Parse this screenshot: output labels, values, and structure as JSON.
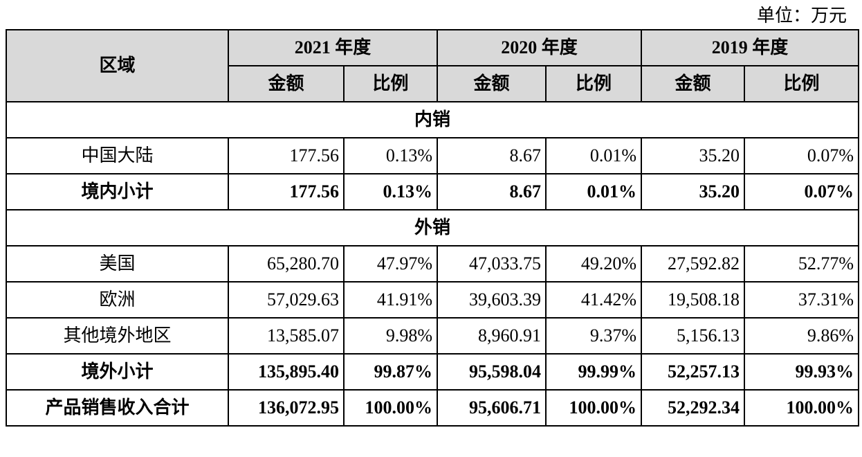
{
  "unit_label": "单位：万元",
  "header": {
    "region": "区域",
    "years": [
      "2021 年度",
      "2020 年度",
      "2019 年度"
    ],
    "amount": "金额",
    "ratio": "比例"
  },
  "sections": {
    "domestic": "内销",
    "overseas": "外销"
  },
  "rows": {
    "mainland": {
      "region": "中国大陆",
      "v": [
        "177.56",
        "0.13%",
        "8.67",
        "0.01%",
        "35.20",
        "0.07%"
      ]
    },
    "domestic_subtotal": {
      "region": "境内小计",
      "v": [
        "177.56",
        "0.13%",
        "8.67",
        "0.01%",
        "35.20",
        "0.07%"
      ]
    },
    "usa": {
      "region": "美国",
      "v": [
        "65,280.70",
        "47.97%",
        "47,033.75",
        "49.20%",
        "27,592.82",
        "52.77%"
      ]
    },
    "europe": {
      "region": "欧洲",
      "v": [
        "57,029.63",
        "41.91%",
        "39,603.39",
        "41.42%",
        "19,508.18",
        "37.31%"
      ]
    },
    "other": {
      "region": "其他境外地区",
      "v": [
        "13,585.07",
        "9.98%",
        "8,960.91",
        "9.37%",
        "5,156.13",
        "9.86%"
      ]
    },
    "overseas_subtotal": {
      "region": "境外小计",
      "v": [
        "135,895.40",
        "99.87%",
        "95,598.04",
        "99.99%",
        "52,257.13",
        "99.93%"
      ]
    },
    "total": {
      "region": "产品销售收入合计",
      "v": [
        "136,072.95",
        "100.00%",
        "95,606.71",
        "100.00%",
        "52,292.34",
        "100.00%"
      ]
    }
  }
}
